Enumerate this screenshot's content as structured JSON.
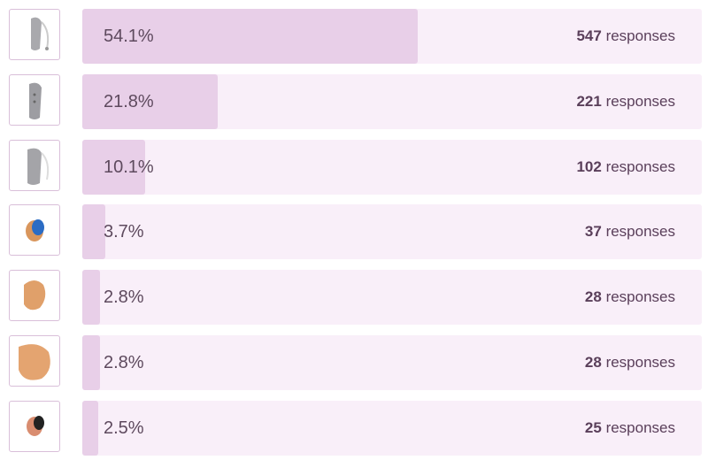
{
  "poll": {
    "unit_label": "responses",
    "options": [
      {
        "percent": 54.1,
        "percent_label": "54.1%",
        "responses": 547
      },
      {
        "percent": 21.8,
        "percent_label": "21.8%",
        "responses": 221
      },
      {
        "percent": 10.1,
        "percent_label": "10.1%",
        "responses": 102
      },
      {
        "percent": 3.7,
        "percent_label": "3.7%",
        "responses": 37
      },
      {
        "percent": 2.8,
        "percent_label": "2.8%",
        "responses": 28
      },
      {
        "percent": 2.8,
        "percent_label": "2.8%",
        "responses": 28
      },
      {
        "percent": 2.5,
        "percent_label": "2.5%",
        "responses": 25
      }
    ]
  }
}
